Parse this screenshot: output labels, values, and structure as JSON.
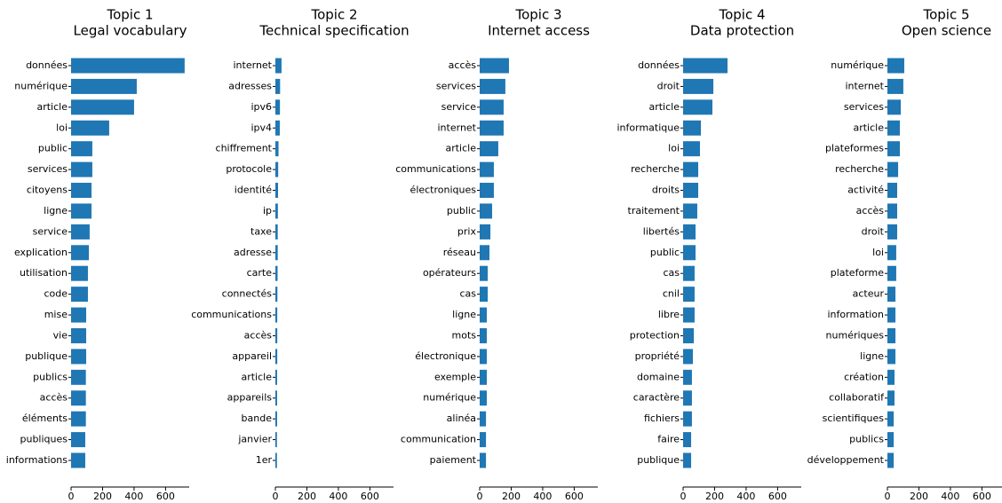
{
  "chart_data": [
    {
      "type": "barh",
      "title": "Topic 1",
      "subtitle": "Legal vocabulary",
      "color": "#1f77b4",
      "categories": [
        "données",
        "numérique",
        "article",
        "loi",
        "public",
        "services",
        "citoyens",
        "ligne",
        "service",
        "explication",
        "utilisation",
        "code",
        "mise",
        "vie",
        "publique",
        "publics",
        "accès",
        "éléments",
        "publiques",
        "informations"
      ],
      "values": [
        721,
        417,
        400,
        242,
        135,
        135,
        130,
        130,
        118,
        113,
        107,
        107,
        96,
        96,
        96,
        94,
        94,
        94,
        90,
        90
      ],
      "xlim": [
        0,
        750
      ],
      "xticks": [
        0,
        200,
        400,
        600
      ]
    },
    {
      "type": "barh",
      "title": "Topic 2",
      "subtitle": "Technical specification",
      "color": "#1f77b4",
      "categories": [
        "internet",
        "adresses",
        "ipv6",
        "ipv4",
        "chiffrement",
        "protocole",
        "identité",
        "ip",
        "taxe",
        "adresse",
        "carte",
        "connectés",
        "communications",
        "accès",
        "appareil",
        "article",
        "appareils",
        "bande",
        "janvier",
        "1er"
      ],
      "values": [
        39,
        30,
        29,
        28,
        20,
        18,
        17,
        16,
        15,
        15,
        14,
        13,
        12,
        12,
        12,
        11,
        11,
        11,
        10,
        10
      ],
      "xlim": [
        0,
        750
      ],
      "xticks": [
        0,
        200,
        400,
        600
      ]
    },
    {
      "type": "barh",
      "title": "Topic 3",
      "subtitle": "Internet access",
      "color": "#1f77b4",
      "categories": [
        "accès",
        "services",
        "service",
        "internet",
        "article",
        "communications",
        "électroniques",
        "public",
        "prix",
        "réseau",
        "opérateurs",
        "cas",
        "ligne",
        "mots",
        "électronique",
        "exemple",
        "numérique",
        "alinéa",
        "communication",
        "paiement"
      ],
      "values": [
        186,
        163,
        152,
        152,
        118,
        90,
        90,
        79,
        68,
        62,
        51,
        51,
        45,
        45,
        45,
        45,
        45,
        40,
        40,
        40
      ],
      "xlim": [
        0,
        750
      ],
      "xticks": [
        0,
        200,
        400,
        600
      ]
    },
    {
      "type": "barh",
      "title": "Topic 4",
      "subtitle": "Data protection",
      "color": "#1f77b4",
      "categories": [
        "données",
        "droit",
        "article",
        "informatique",
        "loi",
        "recherche",
        "droits",
        "traitement",
        "libertés",
        "public",
        "cas",
        "cnil",
        "libre",
        "protection",
        "propriété",
        "domaine",
        "caractère",
        "fichiers",
        "faire",
        "publique"
      ],
      "values": [
        282,
        192,
        186,
        113,
        107,
        96,
        96,
        90,
        79,
        79,
        73,
        73,
        73,
        68,
        62,
        56,
        56,
        56,
        51,
        51
      ],
      "xlim": [
        0,
        750
      ],
      "xticks": [
        0,
        200,
        400,
        600
      ]
    },
    {
      "type": "barh",
      "title": "Topic 5",
      "subtitle": "Open science",
      "color": "#1f77b4",
      "categories": [
        "numérique",
        "internet",
        "services",
        "article",
        "plateformes",
        "recherche",
        "activité",
        "accès",
        "droit",
        "loi",
        "plateforme",
        "acteur",
        "information",
        "numériques",
        "ligne",
        "création",
        "collaboratif",
        "scientifiques",
        "publics",
        "développement"
      ],
      "values": [
        107,
        101,
        85,
        79,
        79,
        68,
        62,
        62,
        62,
        56,
        56,
        51,
        51,
        51,
        51,
        45,
        45,
        40,
        40,
        40
      ],
      "xlim": [
        0,
        750
      ],
      "xticks": [
        0,
        200,
        400,
        600
      ]
    }
  ]
}
